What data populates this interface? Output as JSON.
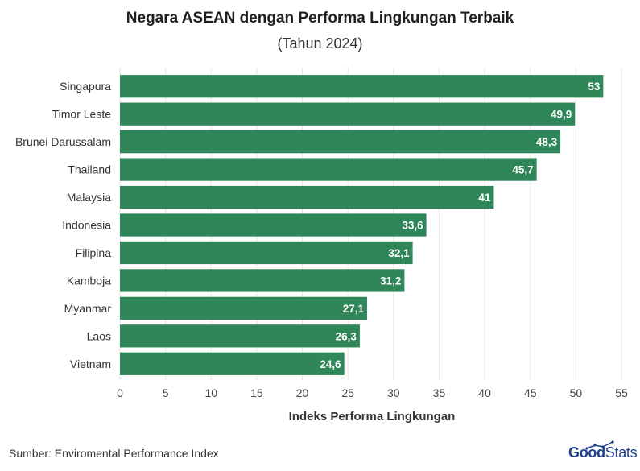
{
  "title": "Negara ASEAN dengan Performa Lingkungan Terbaik",
  "subtitle": "(Tahun 2024)",
  "source": "Sumber: Enviromental Performance Index",
  "logo": {
    "good": "Good",
    "stats": "Stats",
    "color": "#1d3f8f"
  },
  "bar_color": "#2e8659",
  "chart_data": {
    "type": "bar",
    "orientation": "horizontal",
    "categories": [
      "Singapura",
      "Timor Leste",
      "Brunei Darussalam",
      "Thailand",
      "Malaysia",
      "Indonesia",
      "Filipina",
      "Kamboja",
      "Myanmar",
      "Laos",
      "Vietnam"
    ],
    "values": [
      53,
      49.9,
      48.3,
      45.7,
      41,
      33.6,
      32.1,
      31.2,
      27.1,
      26.3,
      24.6
    ],
    "value_labels": [
      "53",
      "49,9",
      "48,3",
      "45,7",
      "41",
      "33,6",
      "32,1",
      "31,2",
      "27,1",
      "26,3",
      "24,6"
    ],
    "xlabel": "Indeks Performa Lingkungan",
    "ylabel": "",
    "xlim": [
      0,
      55
    ],
    "xticks": [
      0,
      5,
      10,
      15,
      20,
      25,
      30,
      35,
      40,
      45,
      50,
      55
    ],
    "grid": true
  }
}
